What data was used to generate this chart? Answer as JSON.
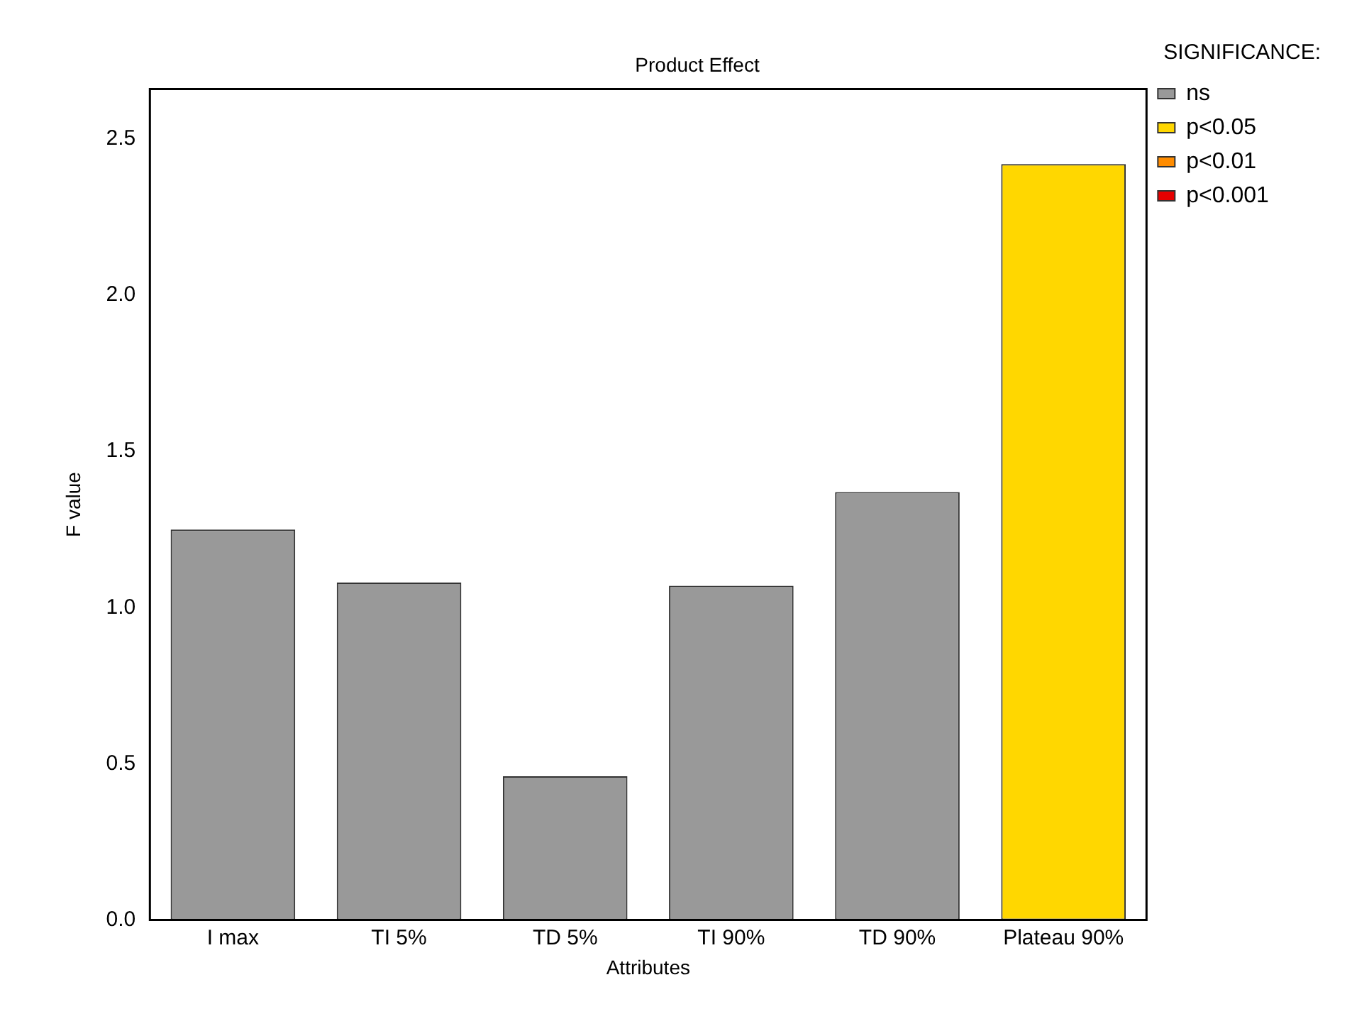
{
  "chart_data": {
    "type": "bar",
    "title": "Product Effect",
    "xlabel": "Attributes",
    "ylabel": "F value",
    "legend_title": "SIGNIFICANCE:",
    "categories": [
      "I max",
      "TI 5%",
      "TD 5%",
      "TI 90%",
      "TD 90%",
      "Plateau 90%"
    ],
    "stacked": true,
    "series": [
      {
        "name": "ns",
        "color": "#999999",
        "values": [
          1.25,
          1.08,
          0.46,
          1.07,
          1.37,
          null
        ]
      },
      {
        "name": "p<0.05",
        "color": "#ffd700",
        "values": [
          null,
          null,
          null,
          null,
          null,
          2.42
        ]
      },
      {
        "name": "p<0.01",
        "color": "#ff8c00",
        "values": [
          null,
          null,
          null,
          null,
          null,
          null
        ]
      },
      {
        "name": "p<0.001",
        "color": "#e60000",
        "values": [
          null,
          null,
          null,
          null,
          null,
          null
        ]
      }
    ],
    "ylim": [
      0,
      2.66
    ],
    "yticks": [
      {
        "value": 0,
        "label": "0.0"
      },
      0.5,
      {
        "value": 1,
        "label": "1.0"
      },
      1.5,
      {
        "value": 2,
        "label": "2.0"
      },
      2.5
    ],
    "grid": false,
    "legend": "top right"
  }
}
